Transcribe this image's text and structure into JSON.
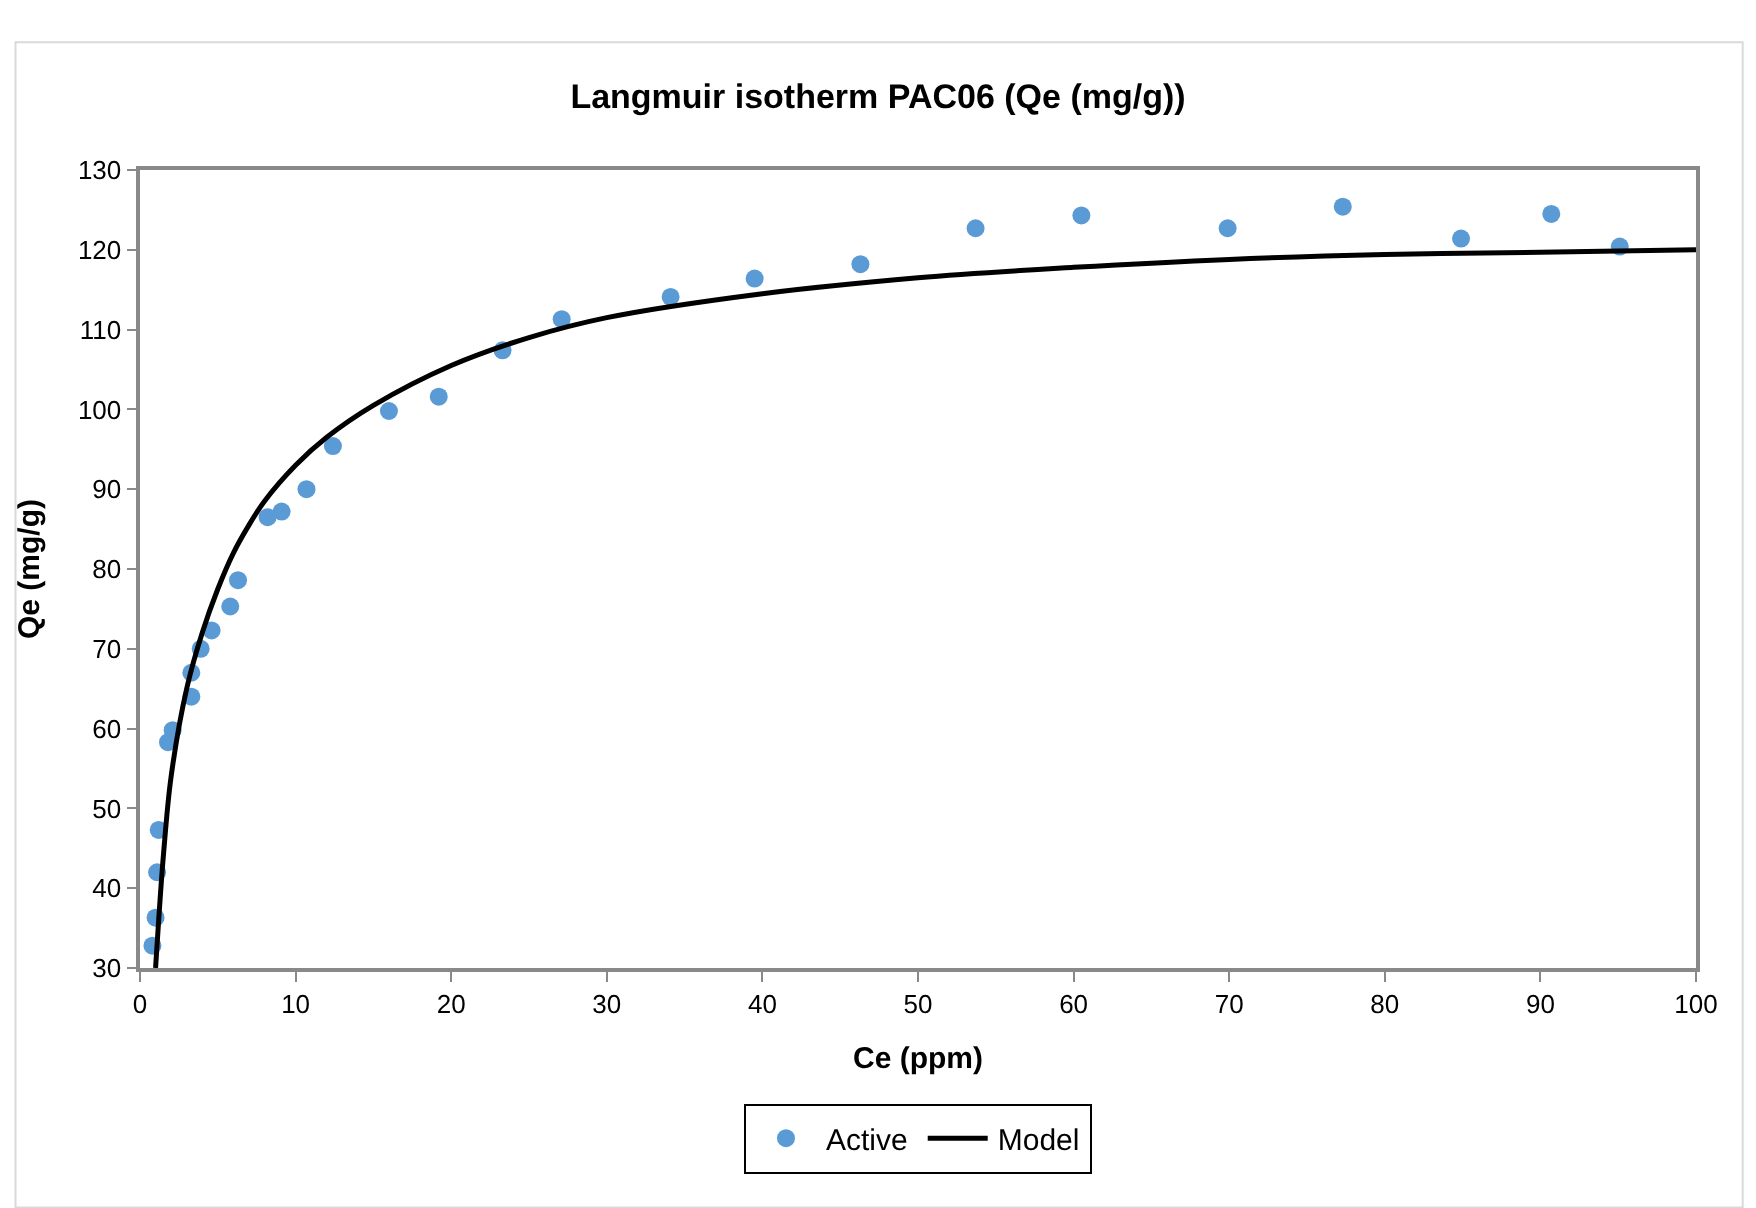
{
  "chart_data": {
    "type": "scatter",
    "title": "Langmuir isotherm PAC06 (Qe (mg/g))",
    "xlabel": "Ce (ppm)",
    "ylabel": "Qe (mg/g)",
    "xlim": [
      0,
      100
    ],
    "xticks": [
      0,
      10,
      20,
      30,
      40,
      50,
      60,
      70,
      80,
      90,
      100
    ],
    "ylim": [
      30,
      130
    ],
    "yticks": [
      30,
      40,
      50,
      60,
      70,
      80,
      90,
      100,
      110,
      120,
      130
    ],
    "legend": "bottom",
    "series": [
      {
        "name": "Active",
        "marker": "circle",
        "color": "#5b9bd5",
        "x": [
          0.8,
          1.0,
          1.1,
          1.2,
          1.8,
          2.1,
          3.3,
          3.3,
          3.9,
          4.6,
          5.8,
          6.3,
          8.2,
          9.1,
          10.7,
          12.4,
          16,
          19.2,
          23.3,
          27.1,
          34.1,
          39.5,
          46.3,
          53.7,
          60.5,
          69.9,
          77.3,
          84.9,
          90.7,
          95.1
        ],
        "values": [
          32.8,
          36.3,
          42,
          47.3,
          58.3,
          59.8,
          64,
          67,
          70,
          72.3,
          75.3,
          78.6,
          86.5,
          87.2,
          90,
          95.4,
          99.8,
          101.6,
          107.4,
          111.3,
          114.1,
          116.4,
          118.2,
          122.7,
          124.3,
          122.7,
          125.4,
          121.4,
          124.5,
          120.4
        ]
      },
      {
        "name": "Model",
        "type": "line",
        "marker": "none",
        "line_style": "solid",
        "color": "#000000",
        "x": [
          1,
          1.2,
          1.5,
          2,
          3,
          4,
          5,
          6,
          7,
          8,
          10,
          12,
          15,
          20,
          25,
          30,
          40,
          50,
          60,
          70,
          80,
          90,
          100
        ],
        "values": [
          30,
          36,
          44,
          54,
          65,
          72,
          77.5,
          82,
          85.5,
          88.5,
          93,
          96.5,
          100.5,
          105.5,
          109,
          111.5,
          114.5,
          116.5,
          117.8,
          118.8,
          119.4,
          119.7,
          120
        ]
      }
    ]
  }
}
